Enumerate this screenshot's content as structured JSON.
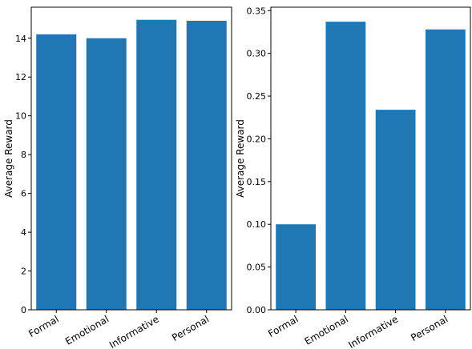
{
  "chart_data": [
    {
      "type": "bar",
      "categories": [
        "Formal",
        "Emotional",
        "Informative",
        "Personal"
      ],
      "values": [
        14.2,
        14.0,
        14.95,
        14.9
      ],
      "title": "",
      "xlabel": "",
      "ylabel": "Average Reward",
      "ylim": [
        0,
        15.6
      ],
      "yticks": [
        0,
        2,
        4,
        6,
        8,
        10,
        12,
        14
      ],
      "ytick_labels": [
        "0",
        "2",
        "4",
        "6",
        "8",
        "10",
        "12",
        "14"
      ],
      "grid": false,
      "bar_color": "#1f77b4"
    },
    {
      "type": "bar",
      "categories": [
        "Formal",
        "Emotional",
        "Informative",
        "Personal"
      ],
      "values": [
        0.1,
        0.337,
        0.234,
        0.328
      ],
      "title": "",
      "xlabel": "",
      "ylabel": "Average Reward",
      "ylim": [
        0,
        0.354
      ],
      "yticks": [
        0,
        0.05,
        0.1,
        0.15,
        0.2,
        0.25,
        0.3,
        0.35
      ],
      "ytick_labels": [
        "0.00",
        "0.05",
        "0.10",
        "0.15",
        "0.20",
        "0.25",
        "0.30",
        "0.35"
      ],
      "grid": false,
      "bar_color": "#1f77b4"
    }
  ]
}
